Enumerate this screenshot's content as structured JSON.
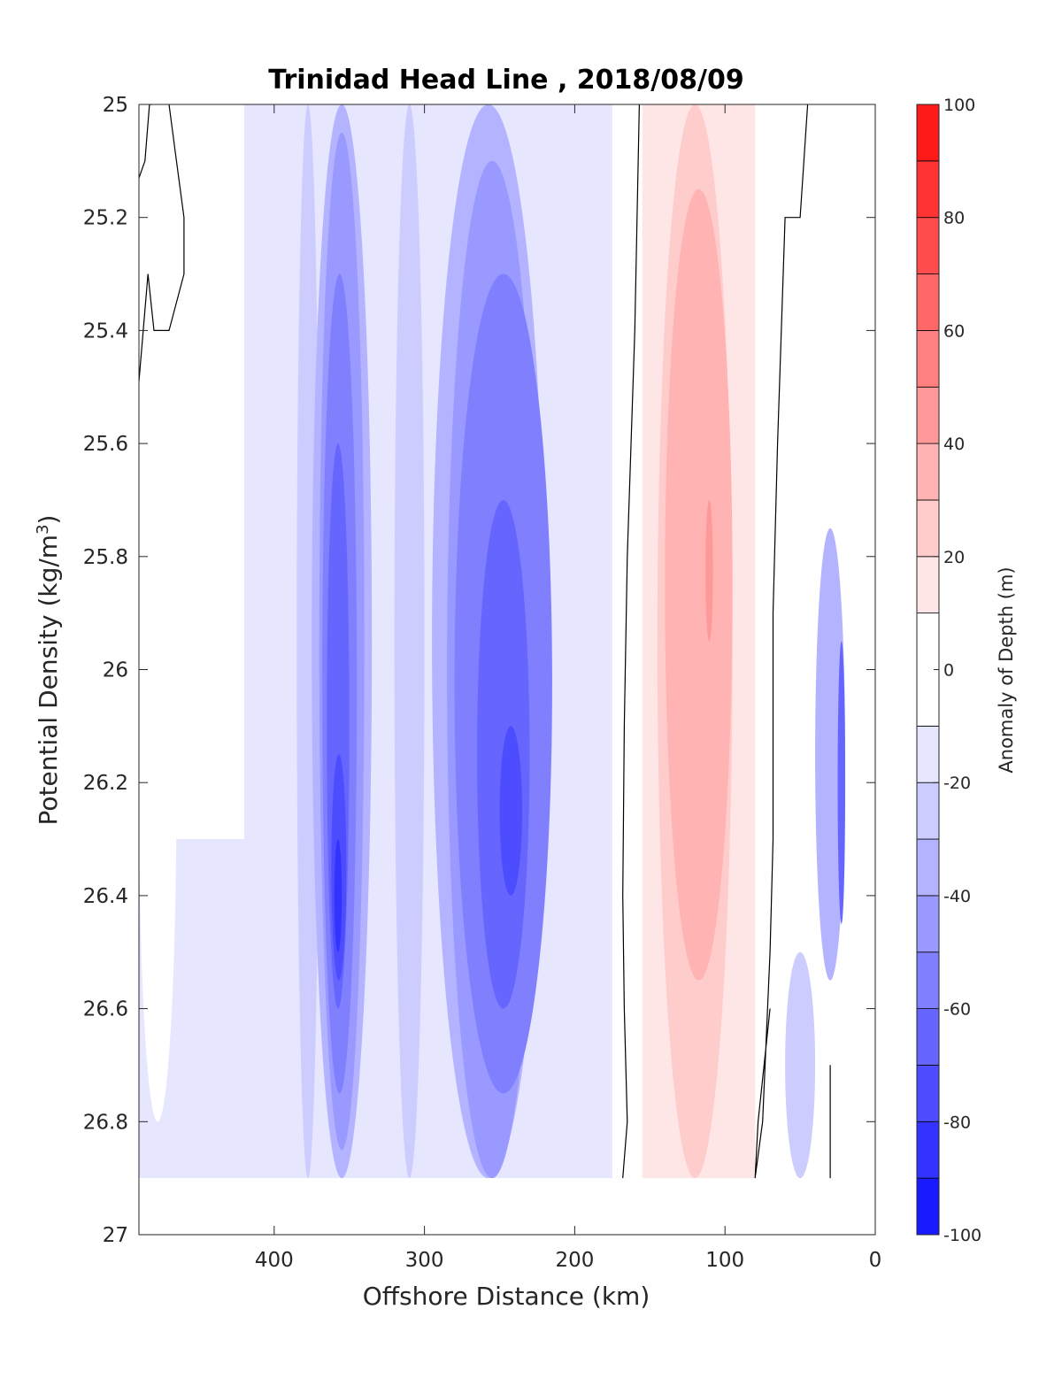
{
  "chart_data": {
    "type": "heatmap",
    "subtype": "filled-contour",
    "title": "Trinidad Head Line , 2018/08/09",
    "xlabel": "Offshore Distance (km)",
    "ylabel_main": "Potential Density (kg/m",
    "ylabel_sup": "3",
    "ylabel_end": ")",
    "x_reversed": true,
    "y_reversed": true,
    "xlim": [
      490,
      0
    ],
    "ylim": [
      25,
      27
    ],
    "x_ticks": [
      400,
      300,
      200,
      100,
      0
    ],
    "x_tick_labels": [
      "400",
      "300",
      "200",
      "100",
      "0"
    ],
    "y_ticks": [
      25,
      25.2,
      25.4,
      25.6,
      25.8,
      26,
      26.2,
      26.4,
      26.6,
      26.8,
      27
    ],
    "y_tick_labels": [
      "25",
      "25.2",
      "25.4",
      "25.6",
      "25.8",
      "26",
      "26.2",
      "26.4",
      "26.6",
      "26.8",
      "27"
    ],
    "colorbar": {
      "label": "Anomaly of Depth (m)",
      "range": [
        -100,
        100
      ],
      "levels": [
        -100,
        -90,
        -80,
        -70,
        -60,
        -50,
        -40,
        -30,
        -20,
        -10,
        10,
        20,
        30,
        40,
        50,
        60,
        70,
        80,
        90,
        100
      ],
      "colors": [
        "#0000ff",
        "#1a1aff",
        "#3333ff",
        "#4d4dff",
        "#6666ff",
        "#8080ff",
        "#9999ff",
        "#b3b3ff",
        "#ccccff",
        "#e6e6ff",
        "#ffffff",
        "#ffe6e6",
        "#ffcccc",
        "#ffb3b3",
        "#ff9999",
        "#ff8080",
        "#ff6666",
        "#ff4d4d",
        "#ff3333",
        "#ff1a1a",
        "#ff0000"
      ],
      "tick_values": [
        100,
        80,
        60,
        40,
        20,
        0,
        -20,
        -40,
        -60,
        -80,
        -100
      ],
      "tick_labels": [
        "100",
        "80",
        "60",
        "40",
        "20",
        "0",
        "-20",
        "-40",
        "-60",
        "-80",
        "-100"
      ]
    },
    "data_y_max": 26.9,
    "fields": [
      {
        "x": [
          490,
          465
        ],
        "y": [
          25.62,
          26.8
        ],
        "value": -10
      },
      {
        "x": [
          465,
          445
        ],
        "y": [
          26.4,
          26.8
        ],
        "value": -15
      },
      {
        "x": [
          400,
          380
        ],
        "y": [
          25.0,
          26.9
        ],
        "value": -20
      },
      {
        "x": [
          385,
          370
        ],
        "y": [
          25.0,
          26.9
        ],
        "value": -30
      },
      {
        "x": [
          375,
          335
        ],
        "y": [
          25.0,
          26.9
        ],
        "value": -40
      },
      {
        "x": [
          370,
          340
        ],
        "y": [
          25.05,
          26.85
        ],
        "value": -50
      },
      {
        "x": [
          368,
          345
        ],
        "y": [
          25.3,
          26.75
        ],
        "value": -60
      },
      {
        "x": [
          365,
          350
        ],
        "y": [
          25.6,
          26.6
        ],
        "value": -70
      },
      {
        "x": [
          362,
          352
        ],
        "y": [
          26.15,
          26.55
        ],
        "value": -80
      },
      {
        "x": [
          360,
          355
        ],
        "y": [
          26.3,
          26.5
        ],
        "value": -90
      },
      {
        "x": [
          320,
          300
        ],
        "y": [
          25.0,
          26.9
        ],
        "value": -25
      },
      {
        "x": [
          295,
          220
        ],
        "y": [
          25.0,
          26.9
        ],
        "value": -40
      },
      {
        "x": [
          285,
          225
        ],
        "y": [
          25.1,
          26.9
        ],
        "value": -50
      },
      {
        "x": [
          280,
          215
        ],
        "y": [
          25.3,
          26.75
        ],
        "value": -60
      },
      {
        "x": [
          265,
          230
        ],
        "y": [
          25.7,
          26.6
        ],
        "value": -70
      },
      {
        "x": [
          250,
          235
        ],
        "y": [
          26.1,
          26.4
        ],
        "value": -80
      },
      {
        "x": [
          195,
          180
        ],
        "y": [
          25.0,
          26.9
        ],
        "value": -20
      },
      {
        "x": [
          145,
          95
        ],
        "y": [
          25.0,
          26.9
        ],
        "value": 20
      },
      {
        "x": [
          140,
          95
        ],
        "y": [
          25.15,
          26.55
        ],
        "value": 30
      },
      {
        "x": [
          113,
          108
        ],
        "y": [
          25.7,
          25.95
        ],
        "value": 40
      },
      {
        "x": [
          60,
          40
        ],
        "y": [
          26.5,
          26.9
        ],
        "value": -25
      },
      {
        "x": [
          40,
          20
        ],
        "y": [
          25.75,
          26.55
        ],
        "value": -40
      },
      {
        "x": [
          25,
          20
        ],
        "y": [
          25.95,
          26.45
        ],
        "value": -70
      }
    ],
    "zero_contours": [
      {
        "x": [
          490,
          484,
          480,
          470,
          460,
          460,
          465,
          470,
          470
        ],
        "y": [
          25.49,
          25.3,
          25.4,
          25.4,
          25.3,
          25.2,
          25.1,
          25.0,
          25.0
        ]
      },
      {
        "x": [
          490,
          486,
          483,
          481
        ],
        "y": [
          25.13,
          25.1,
          25.0,
          25.0
        ]
      },
      {
        "x": [
          157,
          160,
          165,
          167,
          168,
          167,
          165,
          168
        ],
        "y": [
          25.0,
          25.4,
          25.8,
          26.1,
          26.4,
          26.6,
          26.8,
          26.9
        ]
      },
      {
        "x": [
          45,
          50,
          60,
          65,
          68,
          68,
          70,
          75,
          80,
          78,
          70
        ],
        "y": [
          25.0,
          25.2,
          25.2,
          25.6,
          25.9,
          26.3,
          26.5,
          26.8,
          26.9,
          26.8,
          26.6
        ]
      },
      {
        "x": [
          30,
          30
        ],
        "y": [
          26.7,
          26.9
        ]
      }
    ]
  }
}
